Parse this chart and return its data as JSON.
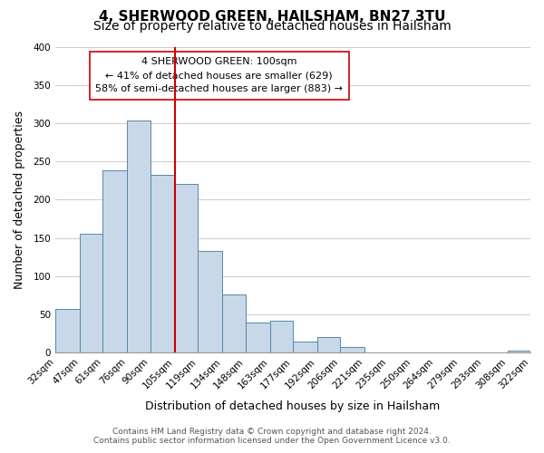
{
  "title": "4, SHERWOOD GREEN, HAILSHAM, BN27 3TU",
  "subtitle": "Size of property relative to detached houses in Hailsham",
  "xlabel": "Distribution of detached houses by size in Hailsham",
  "ylabel": "Number of detached properties",
  "bar_color": "#c8d8e8",
  "bar_edge_color": "#5588aa",
  "vline_color": "#cc0000",
  "vline_x": 105,
  "bin_edges": [
    32,
    47,
    61,
    76,
    90,
    105,
    119,
    134,
    148,
    163,
    177,
    192,
    206,
    221,
    235,
    250,
    264,
    279,
    293,
    308,
    322
  ],
  "values": [
    57,
    155,
    238,
    304,
    232,
    220,
    133,
    76,
    39,
    42,
    15,
    20,
    7,
    0,
    0,
    0,
    0,
    0,
    0,
    3
  ],
  "tick_labels": [
    "32sqm",
    "47sqm",
    "61sqm",
    "76sqm",
    "90sqm",
    "105sqm",
    "119sqm",
    "134sqm",
    "148sqm",
    "163sqm",
    "177sqm",
    "192sqm",
    "206sqm",
    "221sqm",
    "235sqm",
    "250sqm",
    "264sqm",
    "279sqm",
    "293sqm",
    "308sqm",
    "322sqm"
  ],
  "ylim": [
    0,
    400
  ],
  "yticks": [
    0,
    50,
    100,
    150,
    200,
    250,
    300,
    350,
    400
  ],
  "annotation_title": "4 SHERWOOD GREEN: 100sqm",
  "annotation_line1": "← 41% of detached houses are smaller (629)",
  "annotation_line2": "58% of semi-detached houses are larger (883) →",
  "footer1": "Contains HM Land Registry data © Crown copyright and database right 2024.",
  "footer2": "Contains public sector information licensed under the Open Government Licence v3.0.",
  "background_color": "#ffffff",
  "grid_color": "#cccccc",
  "title_fontsize": 11,
  "subtitle_fontsize": 10,
  "label_fontsize": 9,
  "tick_fontsize": 7.5,
  "footer_fontsize": 6.5
}
